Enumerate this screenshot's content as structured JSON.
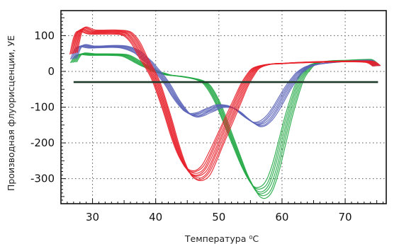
{
  "chart_data": {
    "type": "line",
    "xlabel": "Температура ⁰C",
    "ylabel": "Производная флуорисценции, УЕ",
    "xlim": [
      25,
      76.5
    ],
    "ylim": [
      -370,
      170
    ],
    "x_ticks": [
      30,
      40,
      50,
      60,
      70
    ],
    "y_ticks": [
      100,
      0,
      -100,
      -200,
      -300
    ],
    "grid": "dotted",
    "legend": "none",
    "threshold": {
      "y": -30,
      "color": "#1f3a2a"
    },
    "series": [
      {
        "color": "#e8202a",
        "count": 8,
        "spread": [
          0.6,
          2.5
        ],
        "points": [
          [
            27,
            50
          ],
          [
            28,
            115
          ],
          [
            30,
            110
          ],
          [
            33,
            110
          ],
          [
            35,
            108
          ],
          [
            36,
            98
          ],
          [
            37,
            75
          ],
          [
            38,
            40
          ],
          [
            39,
            10
          ],
          [
            40,
            -25
          ],
          [
            41,
            -75
          ],
          [
            42,
            -130
          ],
          [
            43,
            -190
          ],
          [
            44,
            -240
          ],
          [
            45,
            -275
          ],
          [
            46,
            -290
          ],
          [
            47,
            -290
          ],
          [
            48,
            -275
          ],
          [
            49,
            -240
          ],
          [
            50,
            -200
          ],
          [
            51,
            -160
          ],
          [
            52,
            -120
          ],
          [
            53,
            -80
          ],
          [
            54,
            -40
          ],
          [
            55,
            -10
          ],
          [
            56,
            10
          ],
          [
            58,
            20
          ],
          [
            60,
            22
          ],
          [
            62,
            24
          ],
          [
            65,
            26
          ],
          [
            70,
            28
          ],
          [
            72,
            28
          ],
          [
            74,
            26
          ],
          [
            75,
            15
          ]
        ]
      },
      {
        "color": "#5a63b8",
        "count": 6,
        "spread": [
          0.5,
          2.0
        ],
        "points": [
          [
            27,
            35
          ],
          [
            28,
            70
          ],
          [
            30,
            68
          ],
          [
            33,
            70
          ],
          [
            35,
            68
          ],
          [
            37,
            55
          ],
          [
            38,
            40
          ],
          [
            39,
            25
          ],
          [
            40,
            5
          ],
          [
            41,
            -15
          ],
          [
            42,
            -40
          ],
          [
            43,
            -70
          ],
          [
            44,
            -95
          ],
          [
            45,
            -115
          ],
          [
            46,
            -123
          ],
          [
            47,
            -120
          ],
          [
            48,
            -112
          ],
          [
            49,
            -105
          ],
          [
            50,
            -98
          ],
          [
            51,
            -97
          ],
          [
            52,
            -100
          ],
          [
            53,
            -110
          ],
          [
            54,
            -125
          ],
          [
            55,
            -138
          ],
          [
            56,
            -148
          ],
          [
            57,
            -145
          ],
          [
            58,
            -130
          ],
          [
            59,
            -105
          ],
          [
            60,
            -75
          ],
          [
            61,
            -45
          ],
          [
            62,
            -20
          ],
          [
            63,
            0
          ],
          [
            65,
            18
          ],
          [
            70,
            28
          ],
          [
            73,
            30
          ],
          [
            74,
            28
          ],
          [
            75,
            15
          ]
        ]
      },
      {
        "color": "#22a845",
        "count": 6,
        "spread": [
          0.5,
          2.2
        ],
        "points": [
          [
            27,
            25
          ],
          [
            28,
            48
          ],
          [
            30,
            47
          ],
          [
            33,
            47
          ],
          [
            35,
            45
          ],
          [
            36,
            38
          ],
          [
            37,
            28
          ],
          [
            38,
            18
          ],
          [
            39,
            10
          ],
          [
            40,
            0
          ],
          [
            41,
            -5
          ],
          [
            42,
            -10
          ],
          [
            44,
            -14
          ],
          [
            46,
            -20
          ],
          [
            47,
            -25
          ],
          [
            48,
            -35
          ],
          [
            49,
            -60
          ],
          [
            50,
            -95
          ],
          [
            51,
            -140
          ],
          [
            52,
            -185
          ],
          [
            53,
            -230
          ],
          [
            54,
            -275
          ],
          [
            55,
            -310
          ],
          [
            56,
            -335
          ],
          [
            57,
            -338
          ],
          [
            58,
            -320
          ],
          [
            59,
            -270
          ],
          [
            60,
            -200
          ],
          [
            61,
            -130
          ],
          [
            62,
            -70
          ],
          [
            63,
            -20
          ],
          [
            64,
            5
          ],
          [
            65,
            20
          ],
          [
            67,
            28
          ],
          [
            70,
            30
          ],
          [
            73,
            32
          ],
          [
            74,
            30
          ],
          [
            75,
            15
          ]
        ]
      }
    ]
  }
}
